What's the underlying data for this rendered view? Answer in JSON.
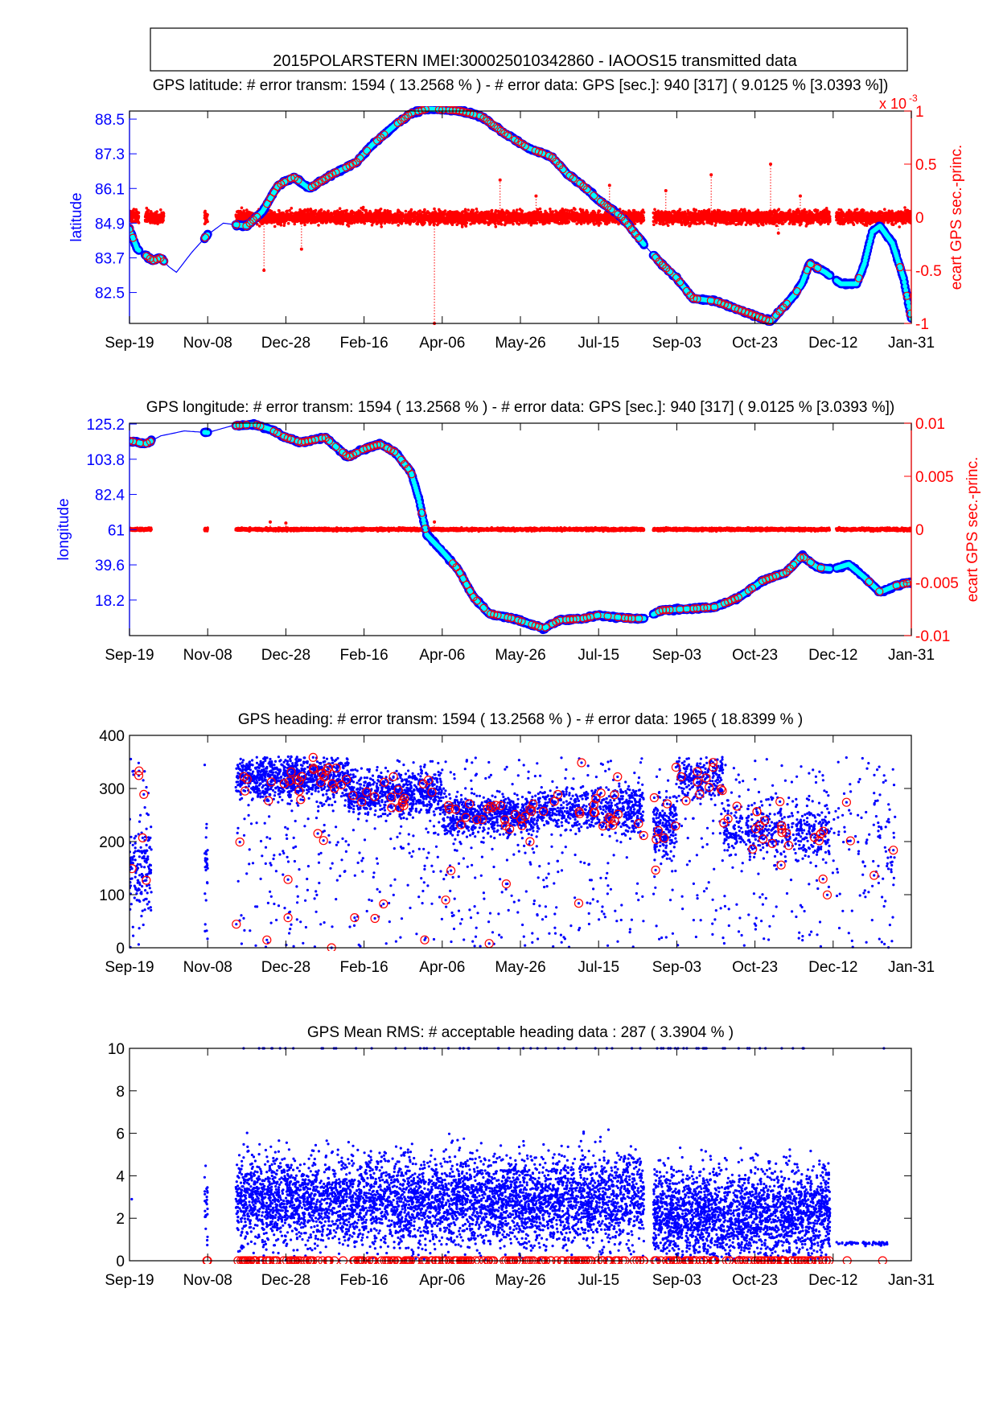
{
  "figure_title": "2015POLARSTERN  IMEI:300025010342860  - IAOOS15 transmitted data",
  "colors": {
    "primary": "#0000ff",
    "secondary": "#ff0000",
    "fill": "#00ffff",
    "axis": "#000000"
  },
  "chart_data": [
    {
      "type": "line",
      "title": "GPS latitude: # error transm: 1594  ( 13.2568 % ) - # error data: GPS [sec.]: 940 [317]  ( 9.0125 % [3.0393 %])",
      "xlabel": "",
      "ylabel": "latitude",
      "y2label": "ecart GPS sec.-princ.",
      "y2_multiplier": "x 10",
      "y2_exponent": "-3",
      "xticks": [
        "Sep-19",
        "Nov-08",
        "Dec-28",
        "Feb-16",
        "Apr-06",
        "May-26",
        "Jul-15",
        "Sep-03",
        "Oct-23",
        "Dec-12",
        "Jan-31"
      ],
      "xlim_days": [
        0,
        500
      ],
      "ylim": [
        81.43,
        88.78
      ],
      "yticks": [
        "82.5",
        "83.7",
        "84.9",
        "86.1",
        "87.3",
        "88.5"
      ],
      "y2lim": [
        -1,
        1
      ],
      "y2ticks": [
        "-1",
        "-0.5",
        "0",
        "0.5",
        "1"
      ],
      "series": [
        {
          "name": "latitude",
          "x": [
            0,
            5,
            15,
            20,
            25,
            30,
            40,
            50,
            60,
            75,
            85,
            95,
            105,
            115,
            130,
            145,
            155,
            170,
            180,
            190,
            210,
            225,
            240,
            255,
            270,
            280,
            290,
            300,
            315,
            330,
            340,
            350,
            360,
            375,
            390,
            400,
            410,
            420,
            425,
            430,
            435,
            445,
            455,
            465,
            470,
            475,
            480,
            488,
            495,
            500
          ],
          "y": [
            84.7,
            84.0,
            83.6,
            83.7,
            83.4,
            83.2,
            83.9,
            84.5,
            84.9,
            84.8,
            85.3,
            86.2,
            86.5,
            86.1,
            86.6,
            87.0,
            87.6,
            88.3,
            88.7,
            88.85,
            88.8,
            88.6,
            88.0,
            87.5,
            87.2,
            86.6,
            86.2,
            85.7,
            85.1,
            84.1,
            83.5,
            83.0,
            82.3,
            82.2,
            81.9,
            81.7,
            81.5,
            82.1,
            82.4,
            82.8,
            83.5,
            83.2,
            82.8,
            82.8,
            83.5,
            84.6,
            84.8,
            84.2,
            83.0,
            81.6
          ]
        },
        {
          "name": "ecart GPS sec.-princ.",
          "level": 0,
          "spread": 0.06,
          "segments": [
            [
              0,
              6
            ],
            [
              10,
              22
            ],
            [
              48,
              50
            ],
            [
              68,
              329
            ],
            [
              335,
              448
            ],
            [
              452,
              500
            ]
          ],
          "spikes": [
            [
              86,
              -0.5
            ],
            [
              110,
              -0.3
            ],
            [
              195,
              -1.0
            ],
            [
              237,
              0.35
            ],
            [
              260,
              0.2
            ],
            [
              307,
              0.3
            ],
            [
              343,
              0.25
            ],
            [
              372,
              0.4
            ],
            [
              410,
              0.5
            ],
            [
              415,
              -0.15
            ],
            [
              429,
              0.2
            ]
          ]
        }
      ]
    },
    {
      "type": "line",
      "title": "GPS longitude: # error transm: 1594  ( 13.2568 % ) - # error data: GPS [sec.]: 940 [317]  ( 9.0125 % [3.0393 %])",
      "xlabel": "",
      "ylabel": "longitude",
      "y2label": "ecart GPS sec.-princ.",
      "xticks": [
        "Sep-19",
        "Nov-08",
        "Dec-28",
        "Feb-16",
        "Apr-06",
        "May-26",
        "Jul-15",
        "Sep-03",
        "Oct-23",
        "Dec-12",
        "Jan-31"
      ],
      "xlim_days": [
        0,
        500
      ],
      "ylim": [
        -3.4,
        125.7
      ],
      "yticks": [
        "18.2",
        "39.6",
        "61",
        "82.4",
        "103.8",
        "125.2"
      ],
      "y2lim": [
        -0.01,
        0.01
      ],
      "y2ticks": [
        "-0.01",
        "-0.005",
        "0",
        "0.005",
        "0.01"
      ],
      "series": [
        {
          "name": "longitude",
          "x": [
            0,
            10,
            20,
            35,
            50,
            65,
            80,
            90,
            100,
            110,
            125,
            140,
            150,
            160,
            170,
            180,
            185,
            190,
            200,
            210,
            220,
            230,
            245,
            255,
            265,
            275,
            290,
            300,
            320,
            330,
            340,
            360,
            375,
            390,
            405,
            420,
            430,
            440,
            450,
            460,
            470,
            480,
            490,
            500
          ],
          "y": [
            115,
            113,
            118,
            121,
            120,
            124,
            125,
            122,
            117,
            114,
            117,
            105,
            110,
            113,
            108,
            96,
            80,
            58,
            48,
            37,
            20,
            10,
            7,
            4,
            1,
            6,
            7,
            9,
            7,
            7,
            12,
            13,
            14,
            20,
            30,
            35,
            45,
            38,
            37,
            40,
            32,
            23,
            27,
            29
          ]
        },
        {
          "name": "ecart GPS sec.-princ.",
          "level": 0,
          "spread": 0.00012,
          "segments": [
            [
              0,
              14
            ],
            [
              48,
              50
            ],
            [
              68,
              329
            ],
            [
              335,
              448
            ],
            [
              452,
              500
            ]
          ],
          "spikes": [
            [
              90,
              0.0007
            ],
            [
              100,
              0.0006
            ],
            [
              195,
              0.0007
            ]
          ]
        }
      ]
    },
    {
      "type": "scatter",
      "title": "GPS heading: # error transm: 1594  ( 13.2568 % ) - # error data: 1965   ( 18.8399 % )",
      "xticks": [
        "Sep-19",
        "Nov-08",
        "Dec-28",
        "Feb-16",
        "Apr-06",
        "May-26",
        "Jul-15",
        "Sep-03",
        "Oct-23",
        "Dec-12",
        "Jan-31"
      ],
      "xlim_days": [
        0,
        500
      ],
      "ylim": [
        0,
        400
      ],
      "yticks": [
        "0",
        "100",
        "200",
        "300",
        "400"
      ],
      "series": [
        {
          "name": "heading",
          "bands": [
            [
              0,
              14,
              150,
              80,
              140
            ],
            [
              48,
              50,
              150,
              60,
              25
            ],
            [
              68,
              140,
              320,
              40,
              900
            ],
            [
              140,
              200,
              290,
              40,
              700
            ],
            [
              200,
              260,
              250,
              35,
              700
            ],
            [
              260,
              329,
              260,
              40,
              600
            ],
            [
              335,
              350,
              230,
              60,
              200
            ],
            [
              350,
              380,
              320,
              40,
              250
            ],
            [
              380,
              448,
              220,
              50,
              450
            ],
            [
              448,
              490,
              200,
              100,
              40
            ]
          ],
          "uniform_points": 1100
        },
        {
          "name": "heading error",
          "color": "red",
          "count": 160
        }
      ]
    },
    {
      "type": "scatter",
      "title": "GPS Mean RMS: # acceptable heading data : 287   ( 3.3904 % )",
      "xticks": [
        "Sep-19",
        "Nov-08",
        "Dec-28",
        "Feb-16",
        "Apr-06",
        "May-26",
        "Jul-15",
        "Sep-03",
        "Oct-23",
        "Dec-12",
        "Jan-31"
      ],
      "xlim_days": [
        0,
        500
      ],
      "ylim": [
        0,
        10
      ],
      "yticks": [
        "0",
        "2",
        "4",
        "6",
        "8",
        "10"
      ],
      "series": [
        {
          "name": "mean RMS",
          "bands": [
            [
              0,
              14,
              2.5,
              1
            ],
            [
              48,
              50,
              2.5,
              25
            ],
            [
              68,
              329,
              2.8,
              4800
            ],
            [
              335,
              448,
              2.2,
              2400
            ],
            [
              452,
              485,
              0.8,
              60
            ]
          ]
        },
        {
          "name": "acceptable heading",
          "color": "red",
          "value": 0,
          "count": 287
        }
      ]
    }
  ]
}
